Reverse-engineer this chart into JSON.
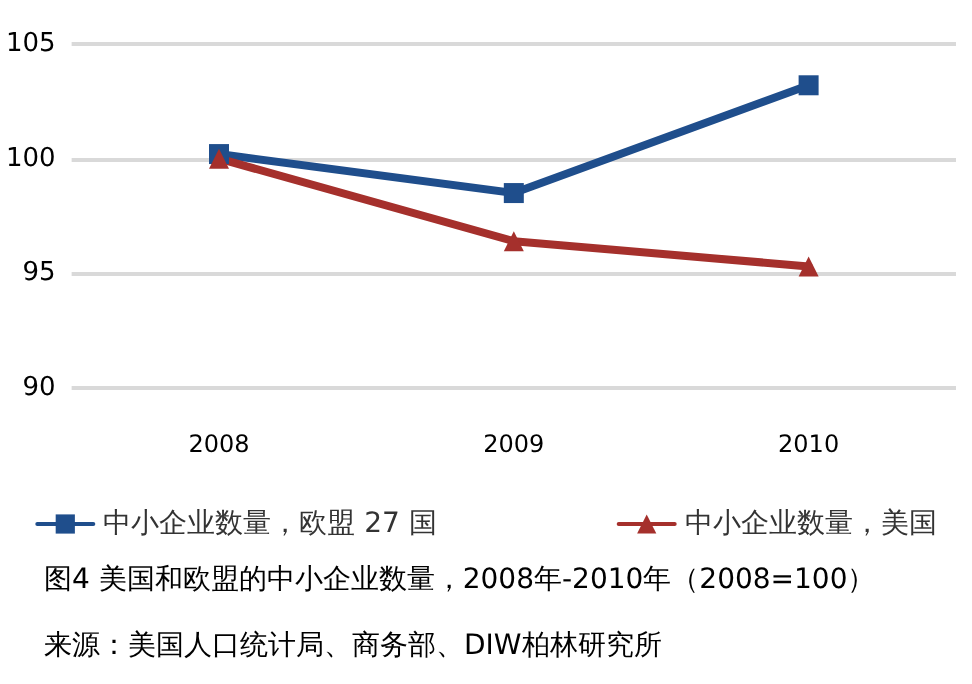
{
  "chart_data": {
    "type": "line",
    "title": "图4 美国和欧盟的中小企业数量，2008年-2010年（2008=100）",
    "annotations": [
      "来源：美国人口统计局、商务部、DIW柏林研究所"
    ],
    "categories": [
      "2008",
      "2009",
      "2010"
    ],
    "series": [
      {
        "name": "中小企业数量，欧盟 27 国",
        "color": "#1f4e8c",
        "values": [
          100.2,
          98.5,
          103.2
        ],
        "marker": "square"
      },
      {
        "name": "中小企业数量，美国",
        "color": "#a5302c",
        "values": [
          100,
          96.4,
          95.3
        ],
        "marker": "triangle"
      }
    ],
    "ylim": [
      90,
      105
    ],
    "yticks": [
      90,
      95,
      100,
      105
    ],
    "grid": "y",
    "legend": "bottom",
    "line_style": "solid"
  }
}
